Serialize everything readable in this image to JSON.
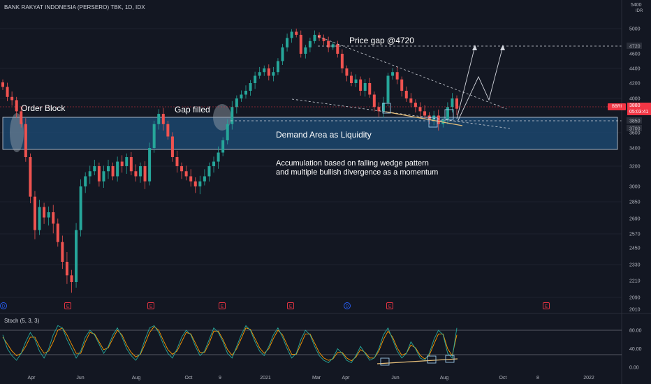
{
  "header": {
    "title": "BANK RAKYAT INDONESIA (PERSERO) TBK, 1D, IDX"
  },
  "currency": "IDR",
  "indicator": {
    "title": "Stoch (5, 3, 3)"
  },
  "annotations": {
    "order_block": "Order Block",
    "gap_filled": "Gap filled",
    "price_gap": "Price gap @4720",
    "demand_area": "Demand Area as Liquidity",
    "accumulation_line1": "Accumulation based on falling wedge pattern",
    "accumulation_line2": "and multiple bullish divergence as a momentum"
  },
  "current": {
    "symbol": "BBRI",
    "price": "3880",
    "countdown": "05:03:41"
  },
  "colors": {
    "background": "#131722",
    "up": "#26a69a",
    "down": "#ef5350",
    "demand_zone": "#1e4d78",
    "stoch_k": "#26a69a",
    "stoch_d": "#ff9800",
    "divergence": "#e8c07a"
  },
  "chart_data": {
    "type": "candlestick",
    "price_axis": {
      "ticks": [
        5000,
        4720,
        4600,
        4400,
        4200,
        4000,
        3880,
        3850,
        3700,
        3600,
        3400,
        3200,
        3000,
        2850,
        2690,
        2570,
        2450,
        2330,
        2210,
        2090,
        2010
      ],
      "top_label": "5400"
    },
    "time_axis": {
      "ticks": [
        "Apr",
        "Jun",
        "Aug",
        "Oct",
        "9",
        "2021",
        "Mar",
        "Apr",
        "Jun",
        "Aug",
        "Oct",
        "8",
        "2022"
      ]
    },
    "closes": [
      4150,
      4020,
      3980,
      3850,
      3700,
      3300,
      2900,
      2600,
      2800,
      2700,
      2750,
      2650,
      2500,
      2350,
      2250,
      2200,
      2600,
      3000,
      3100,
      3150,
      3200,
      3050,
      3150,
      3200,
      3100,
      3250,
      3200,
      3300,
      3150,
      3100,
      3200,
      3050,
      3400,
      3700,
      3820,
      3700,
      3550,
      3300,
      3200,
      3150,
      3100,
      3050,
      3000,
      3050,
      3100,
      3200,
      3250,
      3350,
      3500,
      3700,
      3900,
      4000,
      4050,
      4100,
      4200,
      4300,
      4350,
      4400,
      4300,
      4350,
      4500,
      4700,
      4850,
      4950,
      4900,
      4600,
      4700,
      4800,
      4900,
      4850,
      4800,
      4700,
      4750,
      4600,
      4400,
      4300,
      4200,
      4250,
      4100,
      4200,
      4050,
      3900,
      3850,
      3950,
      4300,
      4350,
      4250,
      4100,
      4000,
      3950,
      3900,
      3850,
      3800,
      3750,
      3800,
      3700,
      3750,
      3900,
      4000,
      3880
    ],
    "event_markers": [
      {
        "type": "D",
        "label": "D"
      },
      {
        "type": "E",
        "label": "E"
      },
      {
        "type": "E",
        "label": "E"
      },
      {
        "type": "E",
        "label": "E"
      },
      {
        "type": "E",
        "label": "E"
      },
      {
        "type": "D",
        "label": "D"
      },
      {
        "type": "E",
        "label": "E"
      },
      {
        "type": "E",
        "label": "E"
      }
    ],
    "stochastic": {
      "name": "Stoch (5, 3, 3)",
      "levels": [
        80,
        20
      ],
      "ticks": [
        "80.00",
        "40.00",
        "0.00"
      ],
      "k": [
        70,
        40,
        25,
        15,
        30,
        55,
        75,
        60,
        35,
        20,
        40,
        70,
        90,
        85,
        60,
        40,
        20,
        35,
        65,
        80,
        70,
        50,
        30,
        45,
        70,
        85,
        65,
        40,
        25,
        15,
        30,
        60,
        85,
        90,
        75,
        50,
        30,
        20,
        40,
        65,
        80,
        70,
        45,
        25,
        35,
        60,
        85,
        75,
        55,
        30,
        20,
        45,
        70,
        90,
        80,
        55,
        35,
        25,
        45,
        70,
        85,
        65,
        40,
        20,
        30,
        60,
        80,
        70,
        45,
        25,
        15,
        10,
        20,
        40,
        30,
        15,
        10,
        25,
        45,
        30,
        15,
        20,
        40,
        70,
        85,
        60,
        35,
        20,
        30,
        55,
        40,
        20,
        15,
        30,
        60,
        80,
        70,
        30,
        20,
        85
      ],
      "d": [
        65,
        50,
        35,
        25,
        30,
        45,
        65,
        65,
        45,
        30,
        35,
        55,
        80,
        85,
        70,
        50,
        30,
        30,
        55,
        75,
        72,
        55,
        38,
        42,
        62,
        80,
        70,
        48,
        32,
        22,
        28,
        50,
        75,
        88,
        80,
        58,
        38,
        28,
        35,
        55,
        75,
        72,
        52,
        32,
        32,
        52,
        78,
        78,
        60,
        38,
        26,
        40,
        62,
        85,
        82,
        62,
        42,
        30,
        40,
        62,
        80,
        70,
        48,
        28,
        28,
        50,
        72,
        72,
        52,
        32,
        20,
        15,
        18,
        32,
        32,
        20,
        14,
        22,
        38,
        32,
        20,
        20,
        35,
        60,
        78,
        65,
        42,
        26,
        30,
        48,
        42,
        26,
        18,
        26,
        50,
        72,
        72,
        40,
        25,
        70
      ]
    }
  }
}
